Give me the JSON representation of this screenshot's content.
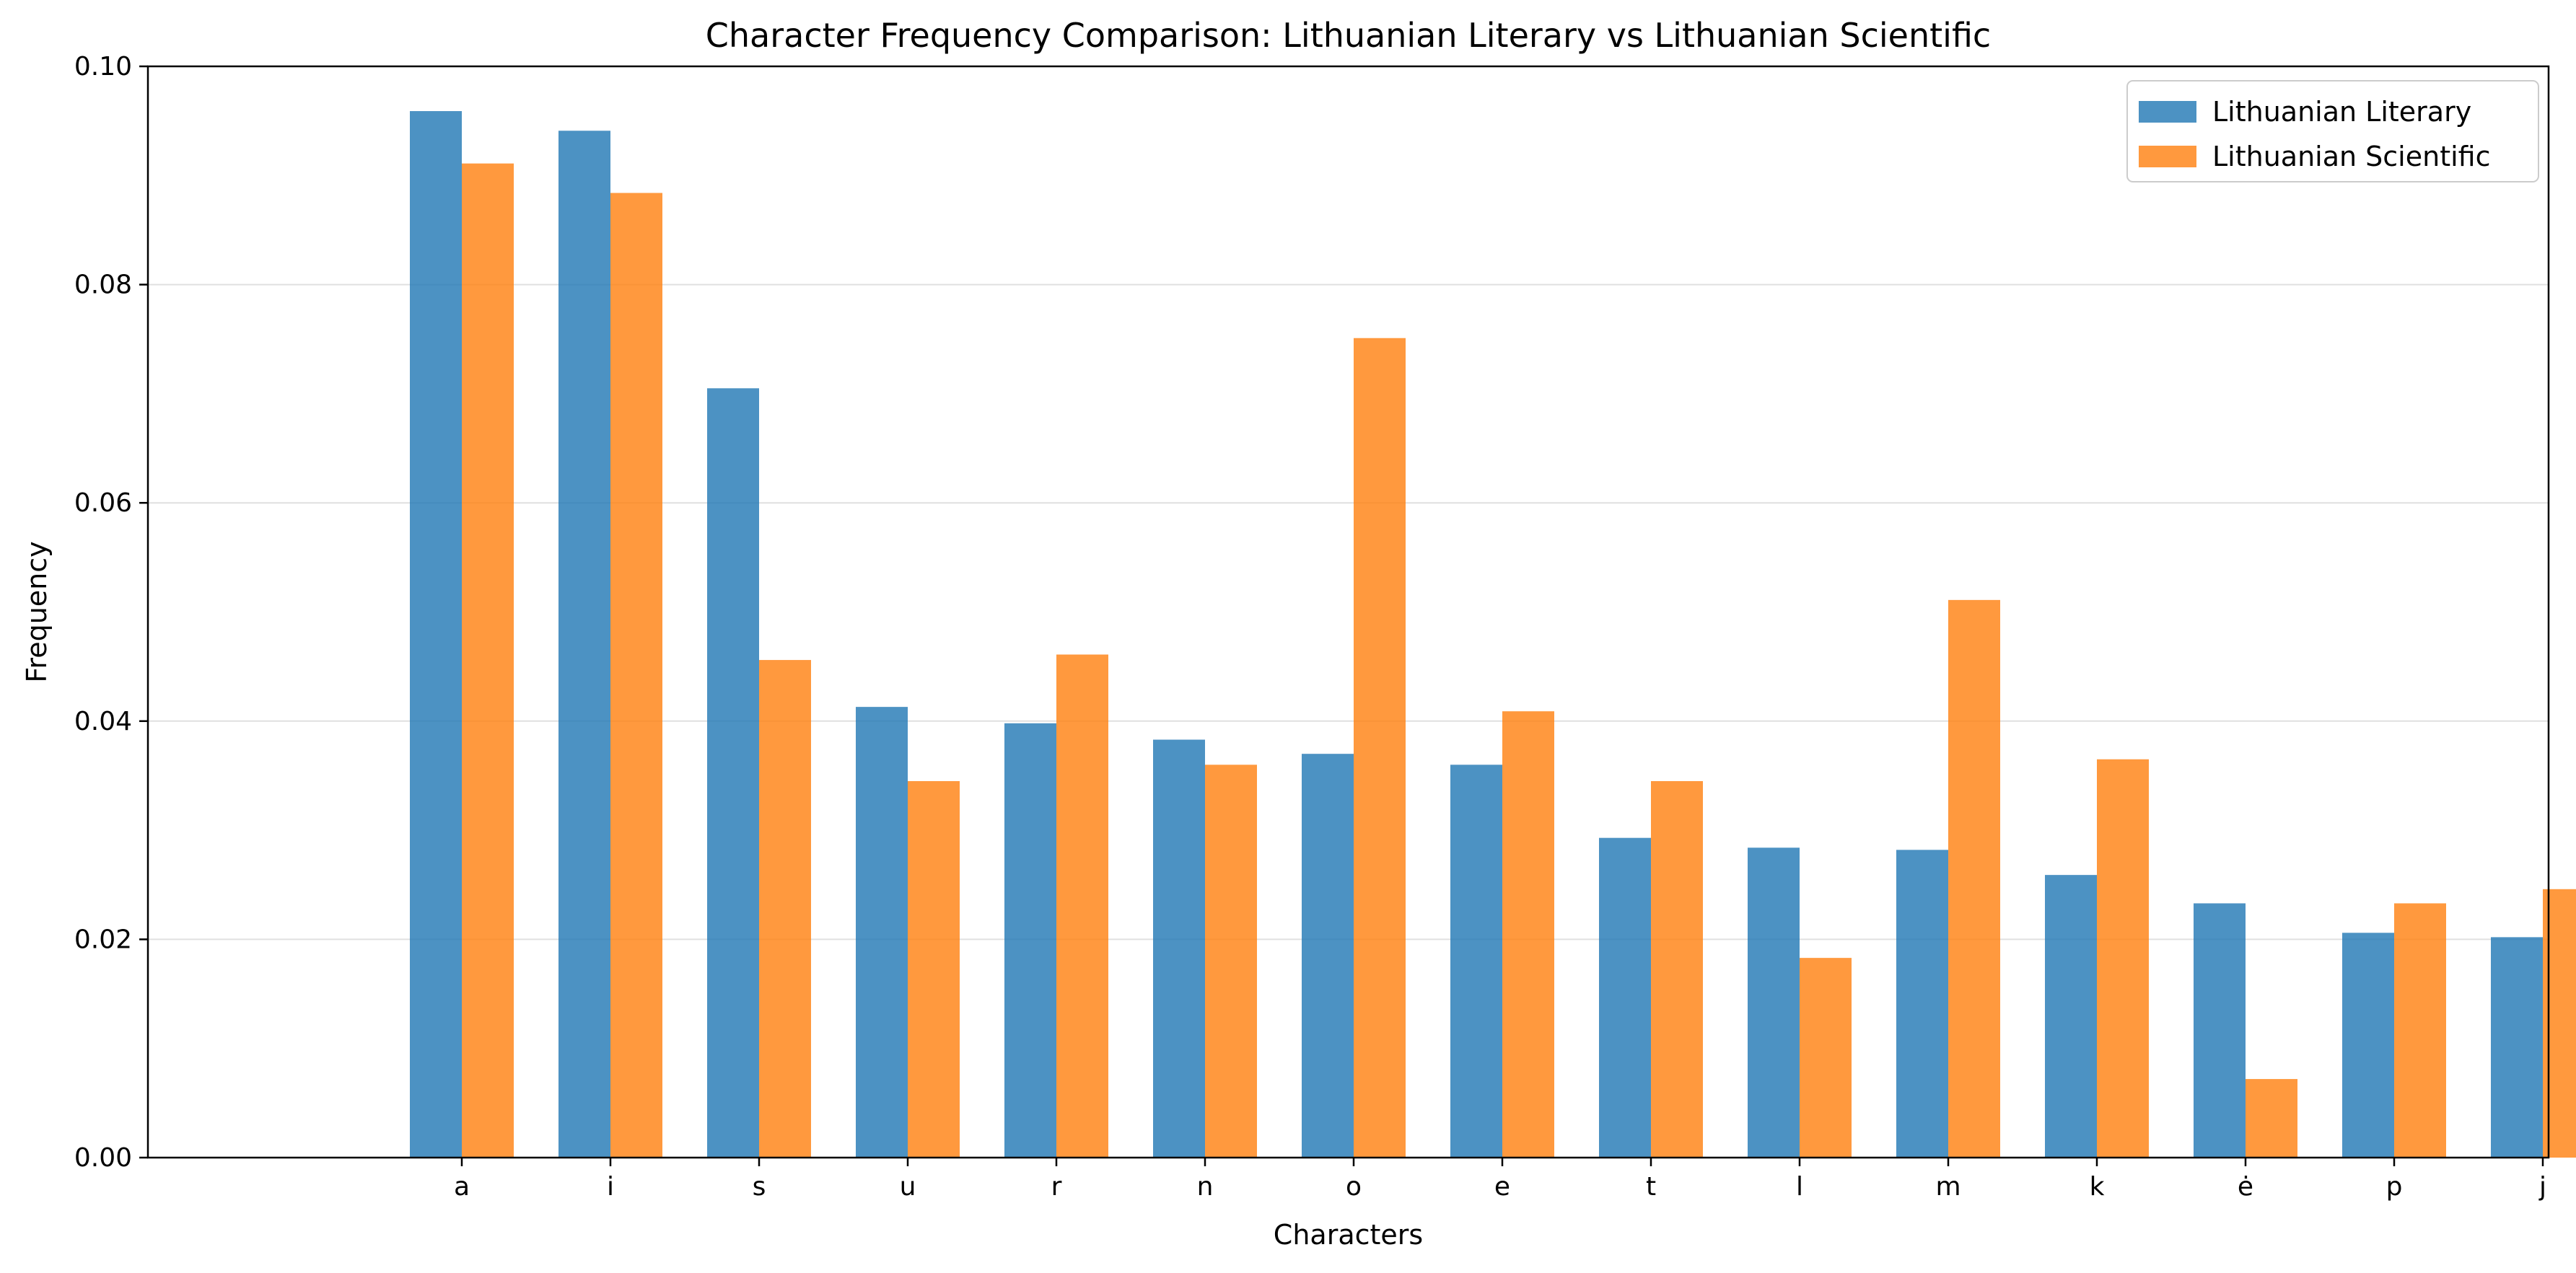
{
  "chart_data": {
    "type": "bar",
    "title": "Character Frequency Comparison: Lithuanian Literary vs Lithuanian Scientific",
    "xlabel": "Characters",
    "ylabel": "Frequency",
    "categories": [
      "a",
      "i",
      "s",
      "u",
      "r",
      "n",
      "o",
      "e",
      "t",
      "l",
      "m",
      "k",
      "ė",
      "p",
      "j"
    ],
    "series": [
      {
        "name": "Lithuanian Literary",
        "color": "#1f77b4",
        "values": [
          0.0959,
          0.0941,
          0.0705,
          0.0413,
          0.0398,
          0.0383,
          0.037,
          0.036,
          0.0293,
          0.0284,
          0.0282,
          0.0259,
          0.0233,
          0.0206,
          0.0202
        ]
      },
      {
        "name": "Lithuanian Scientific",
        "color": "#ff7f0e",
        "values": [
          0.0911,
          0.0884,
          0.0456,
          0.0345,
          0.0461,
          0.036,
          0.0751,
          0.0409,
          0.0345,
          0.0183,
          0.0511,
          0.0365,
          0.0072,
          0.0233,
          0.0246
        ]
      }
    ],
    "ylim": [
      0,
      0.1
    ],
    "yticks": [
      "0.00",
      "0.02",
      "0.04",
      "0.06",
      "0.08",
      "0.10"
    ],
    "grid": "horizontal",
    "legend": "top-right",
    "bar_opacity": 0.8
  }
}
